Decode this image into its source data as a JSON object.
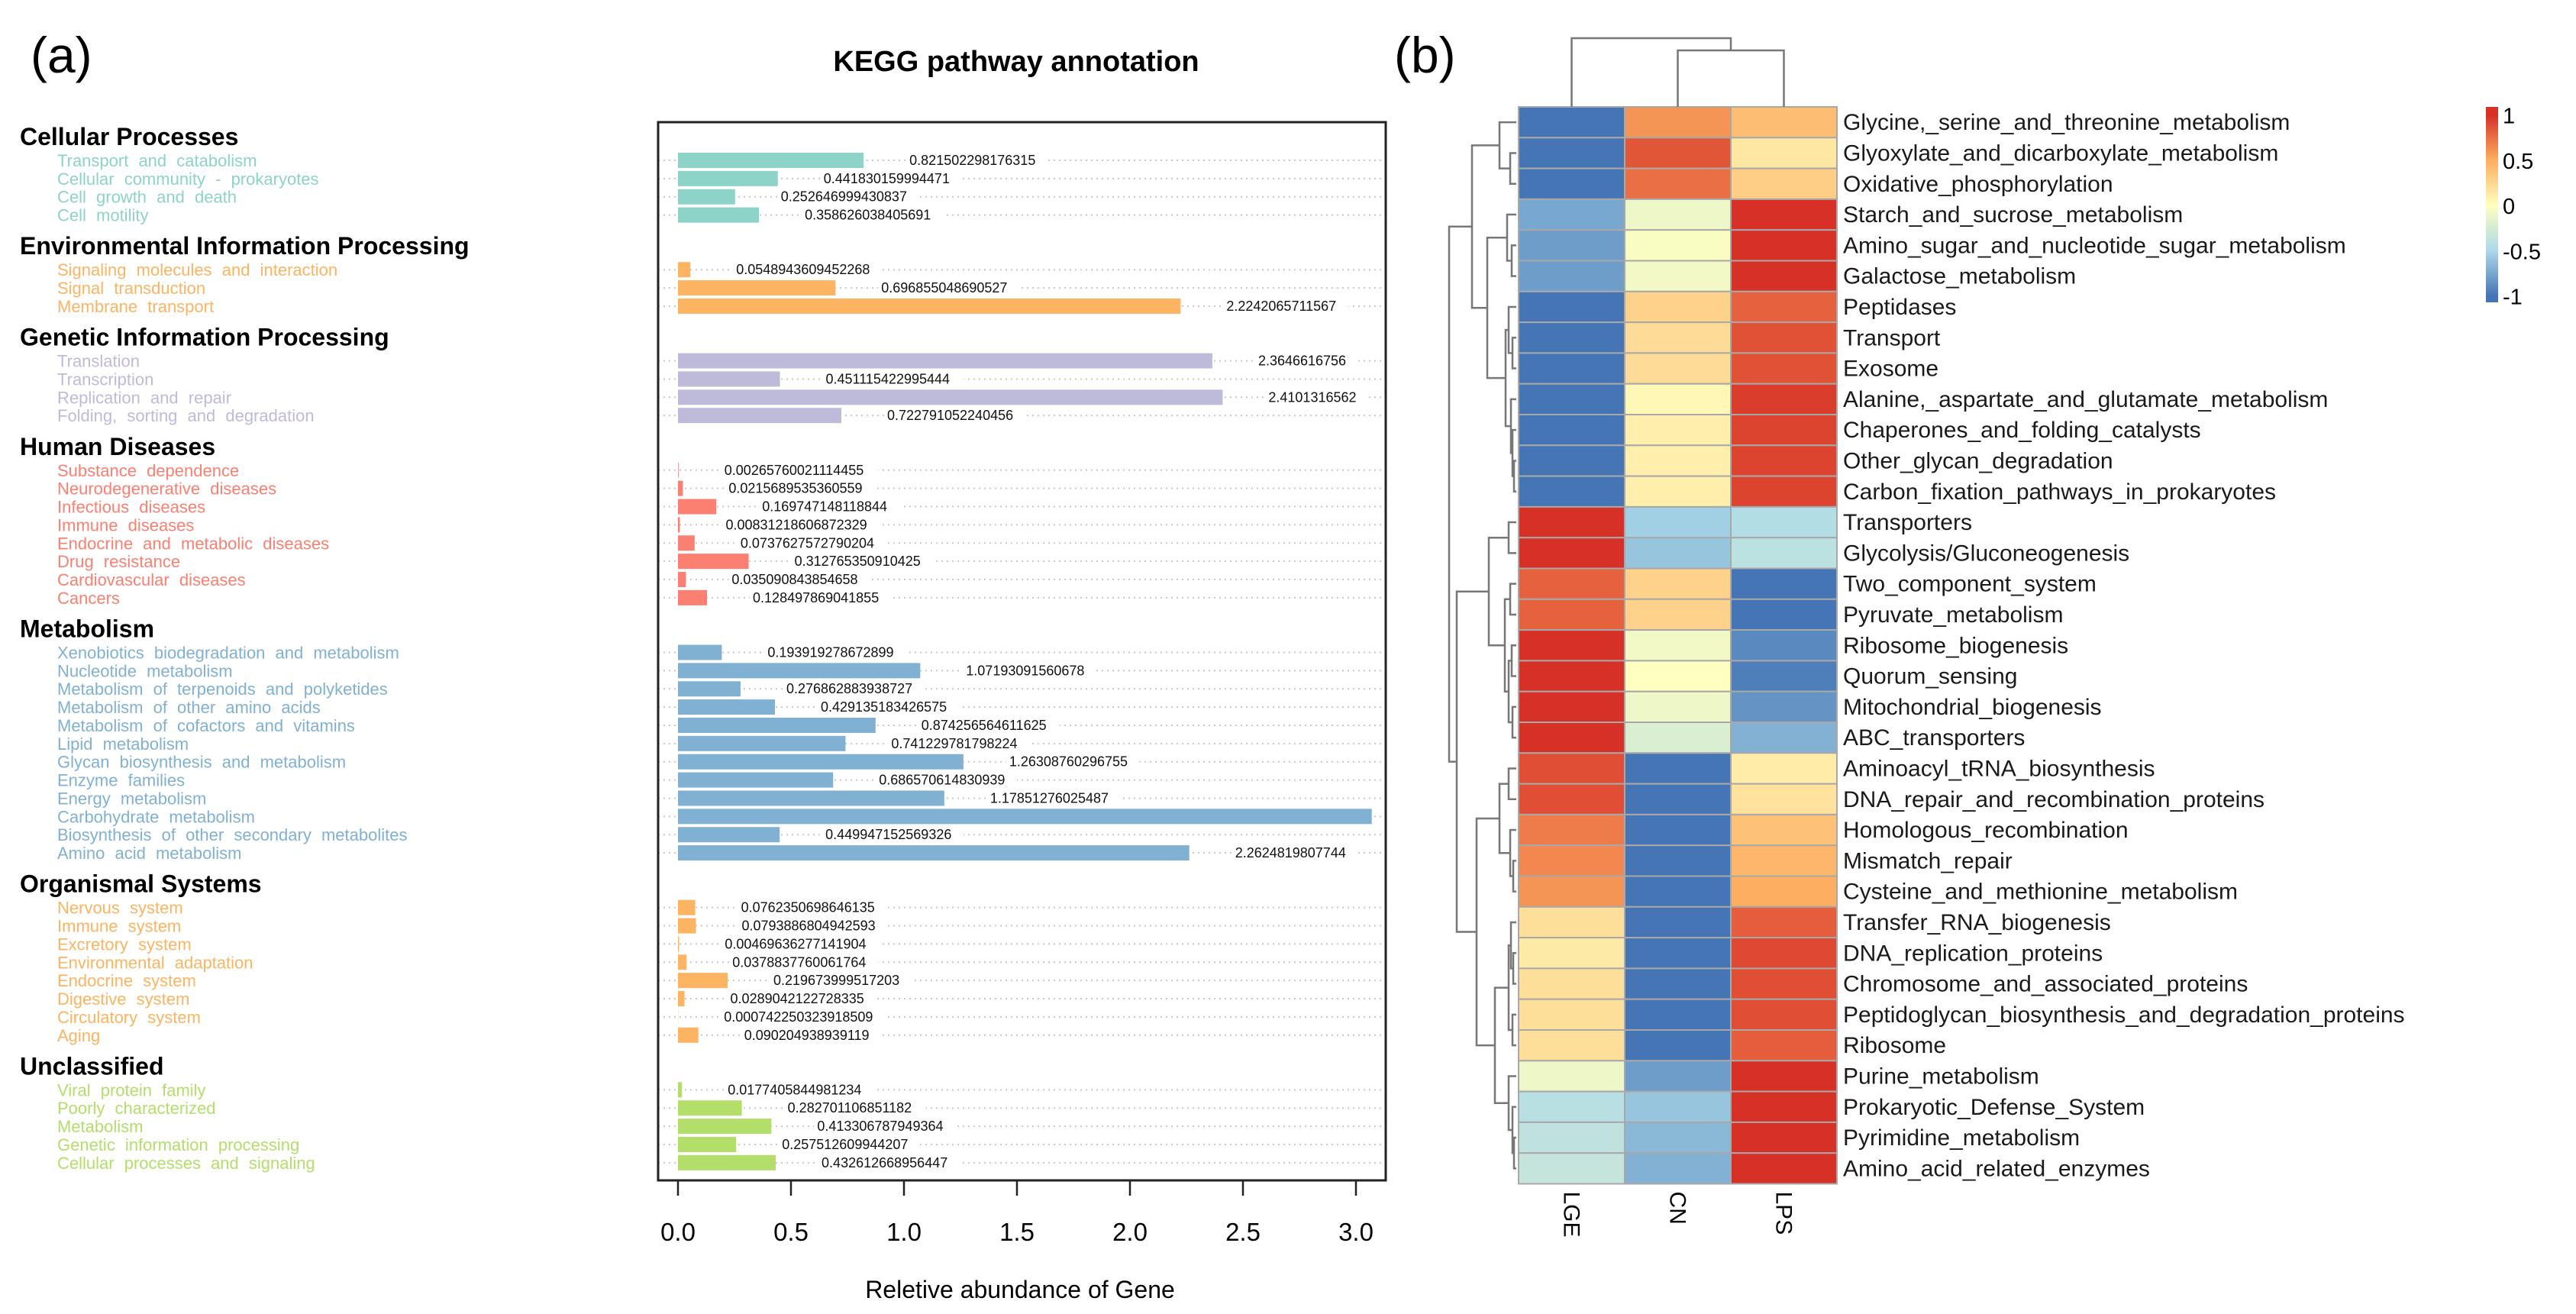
{
  "panel_a": {
    "label": "(a)",
    "chart_data": {
      "type": "bar",
      "orientation": "horizontal",
      "title": "KEGG pathway annotation",
      "xlabel": "Reletive abundance of Gene",
      "xlim": [
        0,
        3.05
      ],
      "xticks": [
        "0.0",
        "0.5",
        "1.0",
        "1.5",
        "2.0",
        "2.5",
        "3.0"
      ],
      "groups": [
        {
          "name": "Cellular Processes",
          "color": "#8dd3c7",
          "items": [
            {
              "label": "Transport and catabolism",
              "value": 0.821502298176315,
              "value_label": "0.821502298176315"
            },
            {
              "label": "Cellular community - prokaryotes",
              "value": 0.441830159994471,
              "value_label": "0.441830159994471"
            },
            {
              "label": "Cell growth and death",
              "value": 0.252646999430837,
              "value_label": "0.252646999430837"
            },
            {
              "label": "Cell motility",
              "value": 0.358626038405691,
              "value_label": "0.358626038405691"
            }
          ]
        },
        {
          "name": "Environmental Information Processing",
          "color": "#fdb462",
          "items": [
            {
              "label": "Signaling molecules and interaction",
              "value": 0.0548943609452268,
              "value_label": "0.0548943609452268"
            },
            {
              "label": "Signal transduction",
              "value": 0.696855048690527,
              "value_label": "0.696855048690527"
            },
            {
              "label": "Membrane transport",
              "value": 2.2242065711567,
              "value_label": "2.2242065711567"
            }
          ]
        },
        {
          "name": "Genetic Information Processing",
          "color": "#bebada",
          "items": [
            {
              "label": "Translation",
              "value": 2.3646616756,
              "value_label": "2.3646616756"
            },
            {
              "label": "Transcription",
              "value": 0.451115422995444,
              "value_label": "0.451115422995444"
            },
            {
              "label": "Replication and repair",
              "value": 2.4101316562,
              "value_label": "2.4101316562"
            },
            {
              "label": "Folding, sorting and degradation",
              "value": 0.722791052240456,
              "value_label": "0.722791052240456"
            }
          ]
        },
        {
          "name": "Human Diseases",
          "color": "#fb8072",
          "items": [
            {
              "label": "Substance dependence",
              "value": 0.00265760021114455,
              "value_label": "0.00265760021114455"
            },
            {
              "label": "Neurodegenerative diseases",
              "value": 0.0215689535360559,
              "value_label": "0.0215689535360559"
            },
            {
              "label": "Infectious diseases",
              "value": 0.169747148118844,
              "value_label": "0.169747148118844"
            },
            {
              "label": "Immune diseases",
              "value": 0.00831218606872329,
              "value_label": "0.00831218606872329"
            },
            {
              "label": "Endocrine and metabolic diseases",
              "value": 0.0737627572790204,
              "value_label": "0.0737627572790204"
            },
            {
              "label": "Drug resistance",
              "value": 0.312765350910425,
              "value_label": "0.312765350910425"
            },
            {
              "label": "Cardiovascular diseases",
              "value": 0.035090843854658,
              "value_label": "0.035090843854658"
            },
            {
              "label": "Cancers",
              "value": 0.128497869041855,
              "value_label": "0.128497869041855"
            }
          ]
        },
        {
          "name": "Metabolism",
          "color": "#80b1d3",
          "items": [
            {
              "label": "Xenobiotics biodegradation and metabolism",
              "value": 0.193919278672899,
              "value_label": "0.193919278672899"
            },
            {
              "label": "Nucleotide metabolism",
              "value": 1.07193091560678,
              "value_label": "1.07193091560678"
            },
            {
              "label": "Metabolism of terpenoids and polyketides",
              "value": 0.276862883938727,
              "value_label": "0.276862883938727"
            },
            {
              "label": "Metabolism of other amino acids",
              "value": 0.429135183426575,
              "value_label": "0.429135183426575"
            },
            {
              "label": "Metabolism of cofactors and vitamins",
              "value": 0.874256564611625,
              "value_label": "0.874256564611625"
            },
            {
              "label": "Lipid metabolism",
              "value": 0.741229781798224,
              "value_label": "0.741229781798224"
            },
            {
              "label": "Glycan biosynthesis and metabolism",
              "value": 1.26308760296755,
              "value_label": "1.26308760296755"
            },
            {
              "label": "Enzyme families",
              "value": 0.686570614830939,
              "value_label": "0.686570614830939"
            },
            {
              "label": "Energy metabolism",
              "value": 1.17851276025487,
              "value_label": "1.17851276025487"
            },
            {
              "label": "Carbohydrate metabolism",
              "value": 3.07
            },
            {
              "label": "Biosynthesis of other secondary metabolites",
              "value": 0.449947152569326,
              "value_label": "0.449947152569326"
            },
            {
              "label": "Amino acid metabolism",
              "value": 2.2624819807744,
              "value_label": "2.2624819807744"
            }
          ]
        },
        {
          "name": "Organismal Systems",
          "color": "#fdb462",
          "items": [
            {
              "label": "Nervous system",
              "value": 0.0762350698646135,
              "value_label": "0.0762350698646135"
            },
            {
              "label": "Immune system",
              "value": 0.0793886804942593,
              "value_label": "0.0793886804942593"
            },
            {
              "label": "Excretory system",
              "value": 0.00469636277141904,
              "value_label": "0.00469636277141904"
            },
            {
              "label": "Environmental adaptation",
              "value": 0.0378837760061764,
              "value_label": "0.0378837760061764"
            },
            {
              "label": "Endocrine system",
              "value": 0.219673999517203,
              "value_label": "0.219673999517203"
            },
            {
              "label": "Digestive system",
              "value": 0.0289042122728335,
              "value_label": "0.0289042122728335"
            },
            {
              "label": "Circulatory system",
              "value": 0.000742250323918509,
              "value_label": "0.000742250323918509"
            },
            {
              "label": "Aging",
              "value": 0.090204938939119,
              "value_label": "0.090204938939119"
            }
          ]
        },
        {
          "name": "Unclassified",
          "color": "#b3de69",
          "items": [
            {
              "label": "Viral protein family",
              "value": 0.0177405844981234,
              "value_label": "0.0177405844981234"
            },
            {
              "label": "Poorly characterized",
              "value": 0.282701106851182,
              "value_label": "0.282701106851182"
            },
            {
              "label": "Metabolism",
              "value": 0.413306787949364,
              "value_label": "0.413306787949364"
            },
            {
              "label": "Genetic information processing",
              "value": 0.257512609944207,
              "value_label": "0.257512609944207"
            },
            {
              "label": "Cellular processes and signaling",
              "value": 0.432612668956447,
              "value_label": "0.432612668956447"
            }
          ]
        }
      ]
    }
  },
  "panel_b": {
    "label": "(b)",
    "chart_data": {
      "type": "heatmap",
      "columns": [
        "LGE",
        "CN",
        "LPS"
      ],
      "legend": {
        "ticks": [
          "1",
          "0.5",
          "0",
          "-0.5",
          "-1"
        ],
        "tick_values": [
          1,
          0.5,
          0,
          -0.5,
          -1
        ],
        "range": [
          -1.07,
          1.09
        ],
        "colors": [
          "#4575b4",
          "#abd9e9",
          "#ffffbf",
          "#fdae61",
          "#d73027"
        ],
        "position": "top-right"
      },
      "rows": [
        {
          "name": "Glycine,_serine_and_threonine_metabolism",
          "values": [
            -1.1,
            0.6,
            0.4
          ]
        },
        {
          "name": "Glyoxylate_and_dicarboxylate_metabolism",
          "values": [
            -1.1,
            0.85,
            0.15
          ]
        },
        {
          "name": "Oxidative_phosphorylation",
          "values": [
            -1.1,
            0.75,
            0.3
          ]
        },
        {
          "name": "Starch_and_sucrose_metabolism",
          "values": [
            -0.75,
            -0.1,
            1.05
          ]
        },
        {
          "name": "Amino_sugar_and_nucleotide_sugar_metabolism",
          "values": [
            -0.8,
            -0.03,
            1.0
          ]
        },
        {
          "name": "Galactose_metabolism",
          "values": [
            -0.8,
            -0.08,
            1.02
          ]
        },
        {
          "name": "Peptidases",
          "values": [
            -1.1,
            0.28,
            0.8
          ]
        },
        {
          "name": "Transport",
          "values": [
            -1.1,
            0.22,
            0.87
          ]
        },
        {
          "name": "Exosome",
          "values": [
            -1.1,
            0.22,
            0.87
          ]
        },
        {
          "name": "Alanine,_aspartate_and_glutamate_metabolism",
          "values": [
            -1.05,
            0.05,
            0.95
          ]
        },
        {
          "name": "Chaperones_and_folding_catalysts",
          "values": [
            -1.05,
            0.1,
            0.92
          ]
        },
        {
          "name": "Other_glycan_degradation",
          "values": [
            -1.05,
            0.1,
            0.92
          ]
        },
        {
          "name": "Carbon_fixation_pathways_in_prokaryotes",
          "values": [
            -1.05,
            0.1,
            0.92
          ]
        },
        {
          "name": "Transporters",
          "values": [
            1.12,
            -0.55,
            -0.45
          ]
        },
        {
          "name": "Glycolysis/Gluconeogenesis",
          "values": [
            1.12,
            -0.6,
            -0.4
          ]
        },
        {
          "name": "Two_component_system",
          "values": [
            0.8,
            0.28,
            -1.1
          ]
        },
        {
          "name": "Pyruvate_metabolism",
          "values": [
            0.8,
            0.28,
            -1.1
          ]
        },
        {
          "name": "Ribosome_biogenesis",
          "values": [
            1.02,
            -0.08,
            -0.9
          ]
        },
        {
          "name": "Quorum_sensing",
          "values": [
            1.0,
            0.0,
            -0.95
          ]
        },
        {
          "name": "Mitochondrial_biogenesis",
          "values": [
            1.08,
            -0.1,
            -0.85
          ]
        },
        {
          "name": "ABC_transporters",
          "values": [
            1.12,
            -0.22,
            -0.7
          ]
        },
        {
          "name": "Aminoacyl_tRNA_biosynthesis",
          "values": [
            0.88,
            -1.0,
            0.12
          ]
        },
        {
          "name": "DNA_repair_and_recombination_proteins",
          "values": [
            0.88,
            -1.0,
            0.18
          ]
        },
        {
          "name": "Homologous_recombination",
          "values": [
            0.7,
            -1.15,
            0.38
          ]
        },
        {
          "name": "Mismatch_repair",
          "values": [
            0.65,
            -1.15,
            0.45
          ]
        },
        {
          "name": "Cysteine_and_methionine_metabolism",
          "values": [
            0.6,
            -1.15,
            0.5
          ]
        },
        {
          "name": "Transfer_RNA_biogenesis",
          "values": [
            0.2,
            -1.05,
            0.82
          ]
        },
        {
          "name": "DNA_replication_proteins",
          "values": [
            0.13,
            -1.0,
            0.9
          ]
        },
        {
          "name": "Chromosome_and_associated_proteins",
          "values": [
            0.2,
            -1.05,
            0.88
          ]
        },
        {
          "name": "Peptidoglycan_biosynthesis_and_degradation_proteins",
          "values": [
            0.2,
            -1.05,
            0.88
          ]
        },
        {
          "name": "Ribosome",
          "values": [
            0.2,
            -1.05,
            0.82
          ]
        },
        {
          "name": "Purine_metabolism",
          "values": [
            -0.1,
            -0.8,
            1.0
          ]
        },
        {
          "name": "Prokaryotic_Defense_System",
          "values": [
            -0.42,
            -0.6,
            1.12
          ]
        },
        {
          "name": "Pyrimidine_metabolism",
          "values": [
            -0.38,
            -0.66,
            1.12
          ]
        },
        {
          "name": "Amino_acid_related_enzymes",
          "values": [
            -0.35,
            -0.7,
            1.12
          ]
        }
      ]
    }
  }
}
